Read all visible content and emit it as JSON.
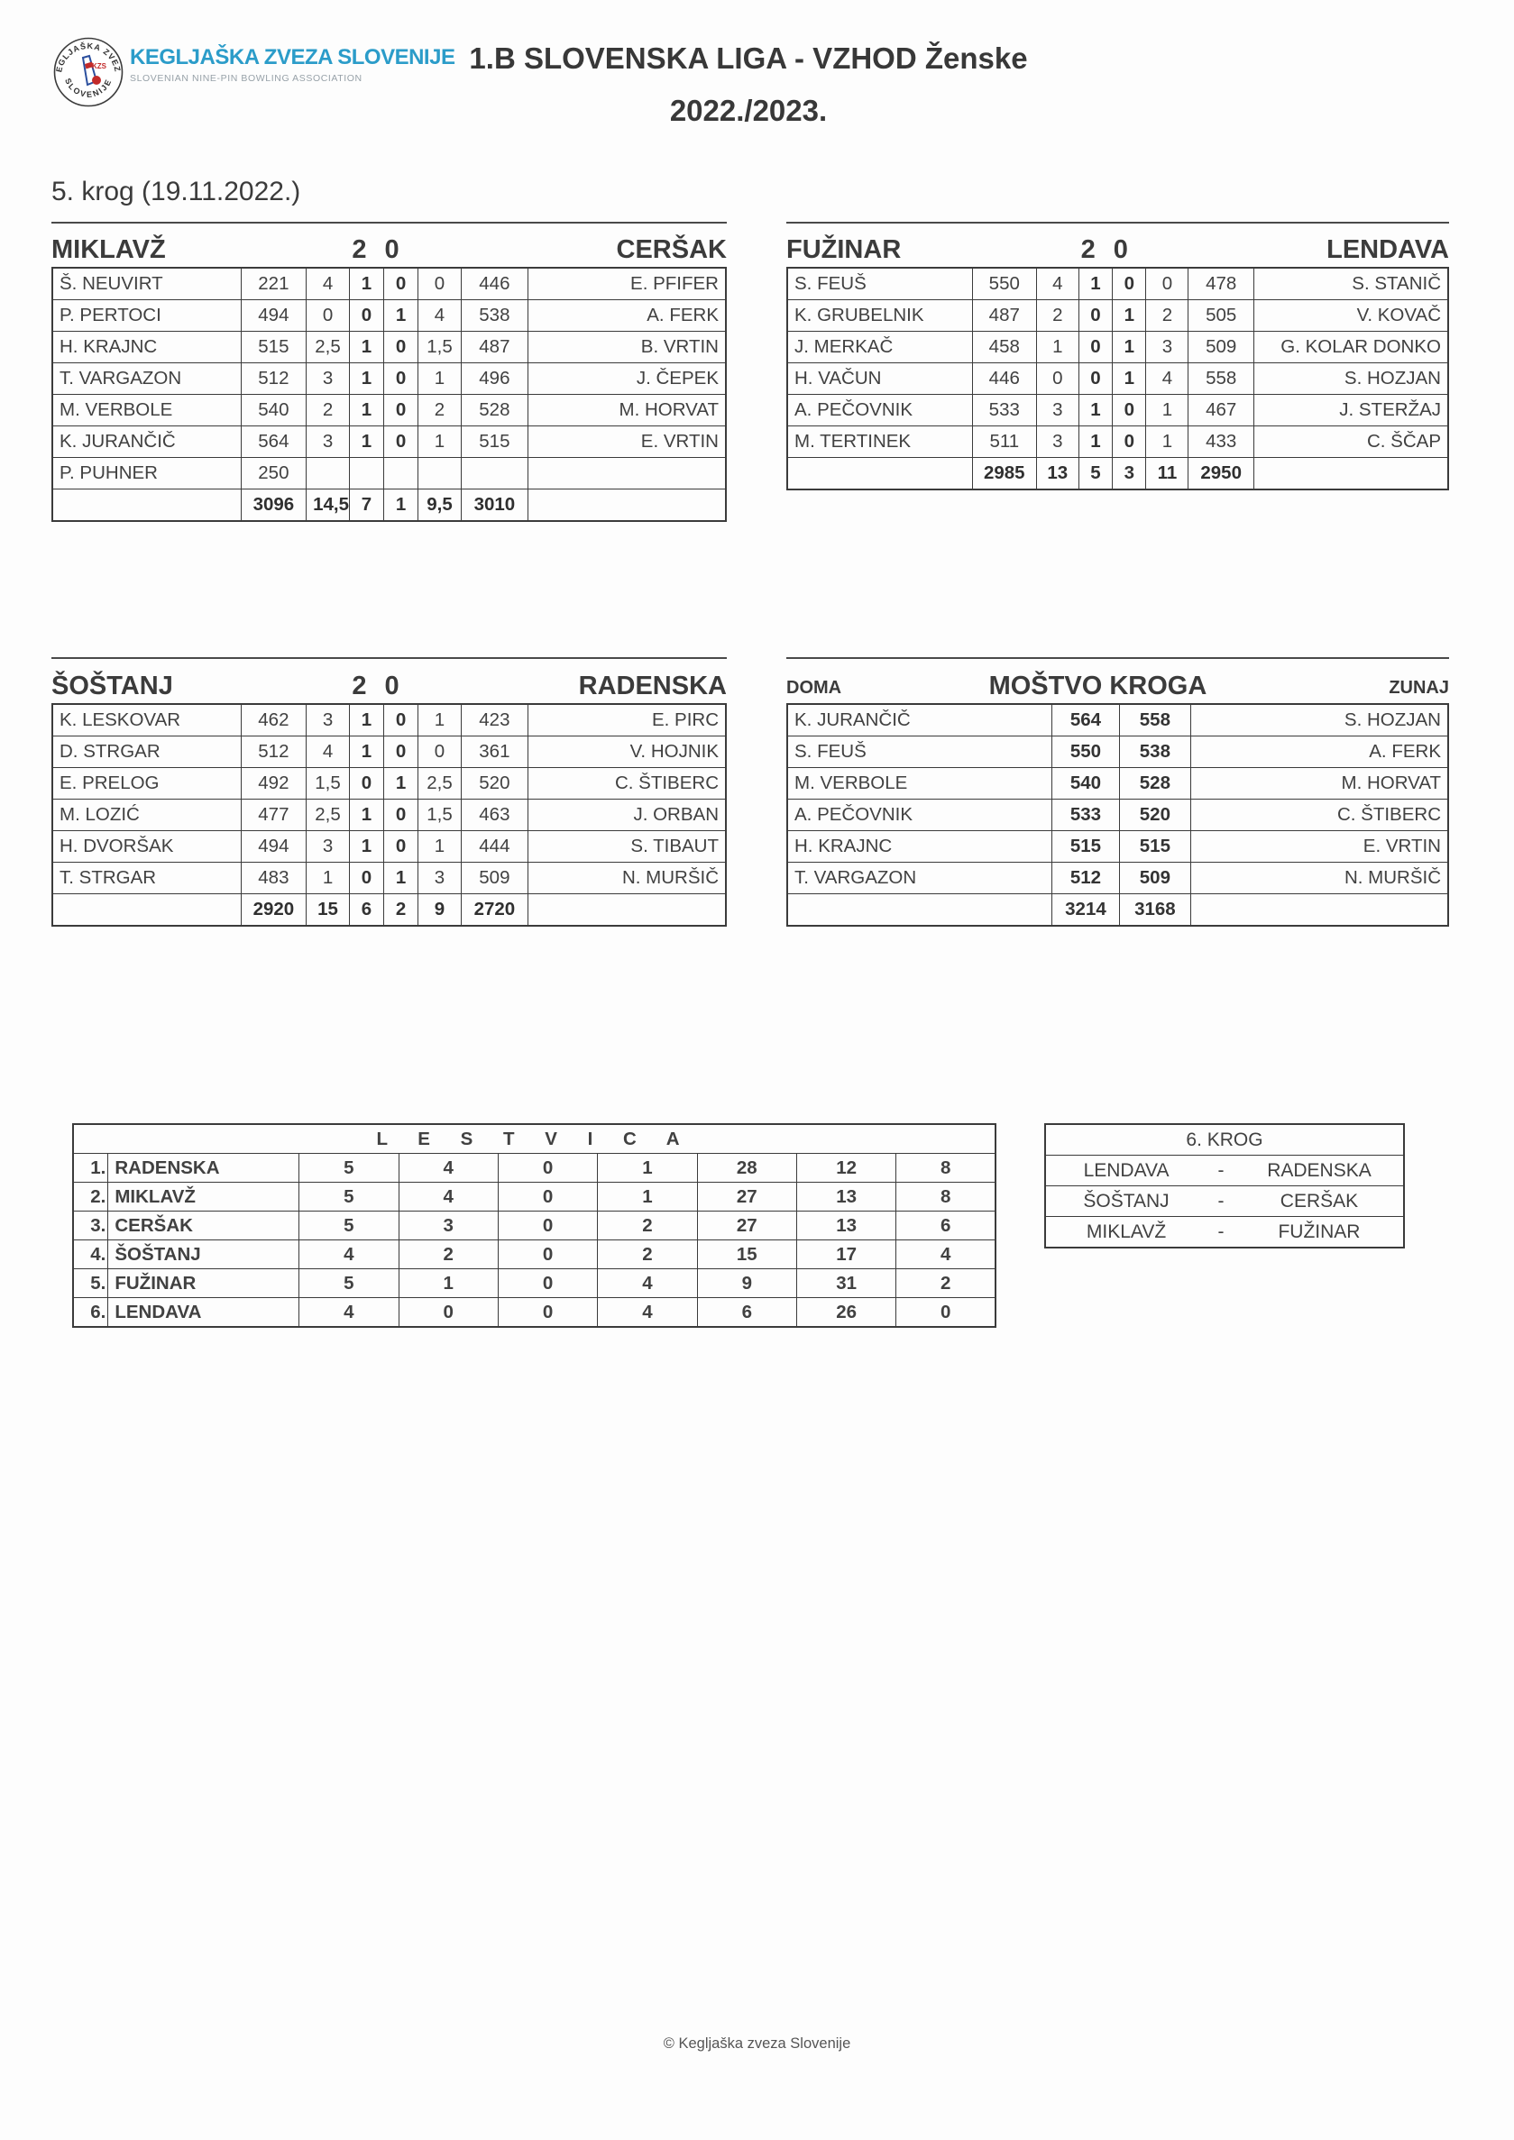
{
  "header": {
    "org_name": "KEGLJAŠKA ZVEZA SLOVENIJE",
    "org_subtitle": "SLOVENIAN NINE-PIN BOWLING ASSOCIATION",
    "title_line1": "1.B SLOVENSKA LIGA - VZHOD Ženske",
    "title_line2": "2022./2023.",
    "accent_color": "#2b9cc9"
  },
  "round_heading": "5. krog (19.11.2022.)",
  "matches": [
    {
      "home_team": "MIKLAVŽ",
      "home_score": "2",
      "away_score": "0",
      "away_team": "CERŠAK",
      "rows": [
        {
          "home": "Š. NEUVIRT",
          "h_score": "221",
          "h_sets": "4",
          "h_mp": "1",
          "a_mp": "0",
          "a_sets": "0",
          "a_score": "446",
          "away": "E. PFIFER"
        },
        {
          "home": "P. PERTOCI",
          "h_score": "494",
          "h_sets": "0",
          "h_mp": "0",
          "a_mp": "1",
          "a_sets": "4",
          "a_score": "538",
          "away": "A. FERK"
        },
        {
          "home": "H. KRAJNC",
          "h_score": "515",
          "h_sets": "2,5",
          "h_mp": "1",
          "a_mp": "0",
          "a_sets": "1,5",
          "a_score": "487",
          "away": "B. VRTIN"
        },
        {
          "home": "T. VARGAZON",
          "h_score": "512",
          "h_sets": "3",
          "h_mp": "1",
          "a_mp": "0",
          "a_sets": "1",
          "a_score": "496",
          "away": "J. ČEPEK"
        },
        {
          "home": "M. VERBOLE",
          "h_score": "540",
          "h_sets": "2",
          "h_mp": "1",
          "a_mp": "0",
          "a_sets": "2",
          "a_score": "528",
          "away": "M. HORVAT"
        },
        {
          "home": "K. JURANČIČ",
          "h_score": "564",
          "h_sets": "3",
          "h_mp": "1",
          "a_mp": "0",
          "a_sets": "1",
          "a_score": "515",
          "away": "E. VRTIN"
        },
        {
          "home": "P. PUHNER",
          "h_score": "250",
          "h_sets": "",
          "h_mp": "",
          "a_mp": "",
          "a_sets": "",
          "a_score": "",
          "away": ""
        }
      ],
      "totals": {
        "h_score": "3096",
        "h_sets": "14,5",
        "h_mp": "7",
        "a_mp": "1",
        "a_sets": "9,5",
        "a_score": "3010"
      }
    },
    {
      "home_team": "FUŽINAR",
      "home_score": "2",
      "away_score": "0",
      "away_team": "LENDAVA",
      "rows": [
        {
          "home": "S. FEUŠ",
          "h_score": "550",
          "h_sets": "4",
          "h_mp": "1",
          "a_mp": "0",
          "a_sets": "0",
          "a_score": "478",
          "away": "S. STANIČ"
        },
        {
          "home": "K. GRUBELNIK",
          "h_score": "487",
          "h_sets": "2",
          "h_mp": "0",
          "a_mp": "1",
          "a_sets": "2",
          "a_score": "505",
          "away": "V. KOVAČ"
        },
        {
          "home": "J. MERKAČ",
          "h_score": "458",
          "h_sets": "1",
          "h_mp": "0",
          "a_mp": "1",
          "a_sets": "3",
          "a_score": "509",
          "away": "G. KOLAR DONKO"
        },
        {
          "home": "H. VAČUN",
          "h_score": "446",
          "h_sets": "0",
          "h_mp": "0",
          "a_mp": "1",
          "a_sets": "4",
          "a_score": "558",
          "away": "S. HOZJAN"
        },
        {
          "home": "A. PEČOVNIK",
          "h_score": "533",
          "h_sets": "3",
          "h_mp": "1",
          "a_mp": "0",
          "a_sets": "1",
          "a_score": "467",
          "away": "J. STERŽAJ"
        },
        {
          "home": "M. TERTINEK",
          "h_score": "511",
          "h_sets": "3",
          "h_mp": "1",
          "a_mp": "0",
          "a_sets": "1",
          "a_score": "433",
          "away": "C. ŠČAP"
        }
      ],
      "totals": {
        "h_score": "2985",
        "h_sets": "13",
        "h_mp": "5",
        "a_mp": "3",
        "a_sets": "11",
        "a_score": "2950"
      }
    },
    {
      "home_team": "ŠOŠTANJ",
      "home_score": "2",
      "away_score": "0",
      "away_team": "RADENSKA",
      "rows": [
        {
          "home": "K. LESKOVAR",
          "h_score": "462",
          "h_sets": "3",
          "h_mp": "1",
          "a_mp": "0",
          "a_sets": "1",
          "a_score": "423",
          "away": "E. PIRC"
        },
        {
          "home": "D. STRGAR",
          "h_score": "512",
          "h_sets": "4",
          "h_mp": "1",
          "a_mp": "0",
          "a_sets": "0",
          "a_score": "361",
          "away": "V. HOJNIK"
        },
        {
          "home": "E. PRELOG",
          "h_score": "492",
          "h_sets": "1,5",
          "h_mp": "0",
          "a_mp": "1",
          "a_sets": "2,5",
          "a_score": "520",
          "away": "C. ŠTIBERC"
        },
        {
          "home": "M. LOZIĆ",
          "h_score": "477",
          "h_sets": "2,5",
          "h_mp": "1",
          "a_mp": "0",
          "a_sets": "1,5",
          "a_score": "463",
          "away": "J. ORBAN"
        },
        {
          "home": "H. DVORŠAK",
          "h_score": "494",
          "h_sets": "3",
          "h_mp": "1",
          "a_mp": "0",
          "a_sets": "1",
          "a_score": "444",
          "away": "S. TIBAUT"
        },
        {
          "home": "T. STRGAR",
          "h_score": "483",
          "h_sets": "1",
          "h_mp": "0",
          "a_mp": "1",
          "a_sets": "3",
          "a_score": "509",
          "away": "N. MURŠIČ"
        }
      ],
      "totals": {
        "h_score": "2920",
        "h_sets": "15",
        "h_mp": "6",
        "a_mp": "2",
        "a_sets": "9",
        "a_score": "2720"
      }
    }
  ],
  "team_of_round": {
    "home_label": "DOMA",
    "title": "MOŠTVO KROGA",
    "away_label": "ZUNAJ",
    "rows": [
      {
        "home": "K. JURANČIČ",
        "h_score": "564",
        "a_score": "558",
        "away": "S. HOZJAN"
      },
      {
        "home": "S. FEUŠ",
        "h_score": "550",
        "a_score": "538",
        "away": "A. FERK"
      },
      {
        "home": "M. VERBOLE",
        "h_score": "540",
        "a_score": "528",
        "away": "M. HORVAT"
      },
      {
        "home": "A. PEČOVNIK",
        "h_score": "533",
        "a_score": "520",
        "away": "C. ŠTIBERC"
      },
      {
        "home": "H. KRAJNC",
        "h_score": "515",
        "a_score": "515",
        "away": "E. VRTIN"
      },
      {
        "home": "T. VARGAZON",
        "h_score": "512",
        "a_score": "509",
        "away": "N. MURŠIČ"
      }
    ],
    "totals": {
      "h_score": "3214",
      "a_score": "3168"
    }
  },
  "standings": {
    "title": "L E S T V I C A",
    "title_plain": "LESTVICA",
    "rows": [
      {
        "rank": "1.",
        "team": "RADENSKA",
        "p": "5",
        "w": "4",
        "d": "0",
        "l": "1",
        "pf": "28",
        "pa": "12",
        "pts": "8"
      },
      {
        "rank": "2.",
        "team": "MIKLAVŽ",
        "p": "5",
        "w": "4",
        "d": "0",
        "l": "1",
        "pf": "27",
        "pa": "13",
        "pts": "8"
      },
      {
        "rank": "3.",
        "team": "CERŠAK",
        "p": "5",
        "w": "3",
        "d": "0",
        "l": "2",
        "pf": "27",
        "pa": "13",
        "pts": "6"
      },
      {
        "rank": "4.",
        "team": "ŠOŠTANJ",
        "p": "4",
        "w": "2",
        "d": "0",
        "l": "2",
        "pf": "15",
        "pa": "17",
        "pts": "4"
      },
      {
        "rank": "5.",
        "team": "FUŽINAR",
        "p": "5",
        "w": "1",
        "d": "0",
        "l": "4",
        "pf": "9",
        "pa": "31",
        "pts": "2"
      },
      {
        "rank": "6.",
        "team": "LENDAVA",
        "p": "4",
        "w": "0",
        "d": "0",
        "l": "4",
        "pf": "6",
        "pa": "26",
        "pts": "0"
      }
    ]
  },
  "next_round": {
    "title": "6. KROG",
    "fixtures": [
      {
        "home": "LENDAVA",
        "sep": "-",
        "away": "RADENSKA"
      },
      {
        "home": "ŠOŠTANJ",
        "sep": "-",
        "away": "CERŠAK"
      },
      {
        "home": "MIKLAVŽ",
        "sep": "-",
        "away": "FUŽINAR"
      }
    ]
  },
  "footer": "© Kegljaška zveza Slovenije"
}
